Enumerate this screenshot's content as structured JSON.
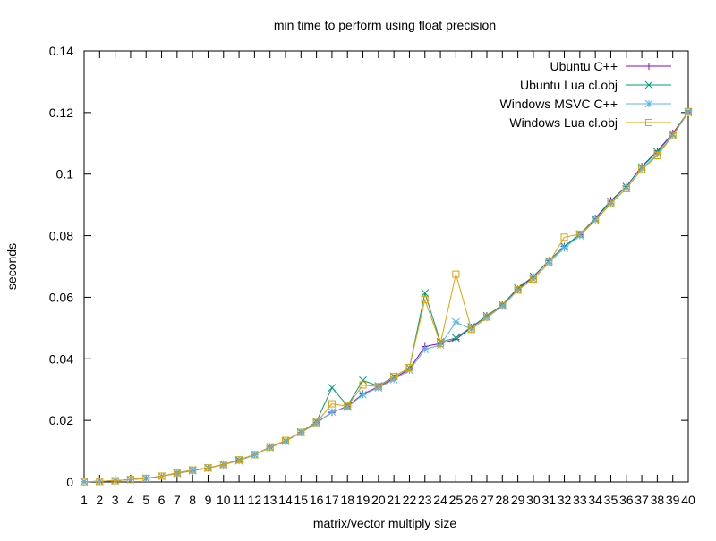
{
  "chart_data": {
    "type": "line",
    "title": "min time to perform using float precision",
    "xlabel": "matrix/vector multiply size",
    "ylabel": "seconds",
    "x": [
      1,
      2,
      3,
      4,
      5,
      6,
      7,
      8,
      9,
      10,
      11,
      12,
      13,
      14,
      15,
      16,
      17,
      18,
      19,
      20,
      21,
      22,
      23,
      24,
      25,
      26,
      27,
      28,
      29,
      30,
      31,
      32,
      33,
      34,
      35,
      36,
      37,
      38,
      39,
      40
    ],
    "xlim": [
      1,
      40
    ],
    "ylim": [
      0,
      0.14
    ],
    "yticks": [
      "0",
      "0.02",
      "0.04",
      "0.06",
      "0.08",
      "0.1",
      "0.12",
      "0.14"
    ],
    "ytick_values": [
      0,
      0.02,
      0.04,
      0.06,
      0.08,
      0.1,
      0.12,
      0.14
    ],
    "legend_position": "top-right",
    "grid": false,
    "series": [
      {
        "name": "Ubuntu C++",
        "color": "#9400d3",
        "marker": "plus",
        "values": [
          0.0001,
          0.0002,
          0.0004,
          0.0008,
          0.0012,
          0.0019,
          0.0028,
          0.0037,
          0.0045,
          0.0056,
          0.0072,
          0.0089,
          0.0114,
          0.0133,
          0.0161,
          0.0193,
          0.0226,
          0.0246,
          0.0286,
          0.0309,
          0.0337,
          0.0367,
          0.044,
          0.045,
          0.0463,
          0.0502,
          0.054,
          0.0575,
          0.0626,
          0.0666,
          0.0719,
          0.0765,
          0.0803,
          0.0857,
          0.0914,
          0.096,
          0.1025,
          0.1075,
          0.1133,
          0.1202
        ]
      },
      {
        "name": "Ubuntu Lua cl.obj",
        "color": "#009e73",
        "marker": "cross",
        "values": [
          0.0001,
          0.0002,
          0.0004,
          0.0008,
          0.0012,
          0.0019,
          0.003,
          0.0039,
          0.0046,
          0.0057,
          0.0072,
          0.0089,
          0.0114,
          0.0134,
          0.0162,
          0.0196,
          0.0306,
          0.0248,
          0.033,
          0.0312,
          0.0343,
          0.0371,
          0.0614,
          0.0455,
          0.0468,
          0.0504,
          0.054,
          0.0576,
          0.063,
          0.0668,
          0.0718,
          0.0765,
          0.0805,
          0.0855,
          0.0911,
          0.096,
          0.1023,
          0.1072,
          0.113,
          0.1203
        ]
      },
      {
        "name": "Windows MSVC C++",
        "color": "#56b4e9",
        "marker": "star",
        "values": [
          0.0001,
          0.0002,
          0.0004,
          0.0008,
          0.0012,
          0.0019,
          0.0028,
          0.0037,
          0.0045,
          0.0056,
          0.0069,
          0.0088,
          0.0112,
          0.0132,
          0.016,
          0.019,
          0.0228,
          0.0243,
          0.0284,
          0.0306,
          0.0333,
          0.0363,
          0.0431,
          0.0445,
          0.052,
          0.0496,
          0.0534,
          0.0571,
          0.0623,
          0.0659,
          0.0712,
          0.076,
          0.08,
          0.085,
          0.0904,
          0.0953,
          0.1017,
          0.1065,
          0.1125,
          0.12
        ]
      },
      {
        "name": "Windows Lua cl.obj",
        "color": "#e69f00",
        "marker": "square",
        "values": [
          0.0001,
          0.0002,
          0.0004,
          0.0008,
          0.0012,
          0.0019,
          0.003,
          0.0039,
          0.0046,
          0.0057,
          0.0072,
          0.0089,
          0.0114,
          0.0135,
          0.0161,
          0.0193,
          0.0254,
          0.0246,
          0.0315,
          0.031,
          0.0342,
          0.0372,
          0.0592,
          0.045,
          0.0675,
          0.0496,
          0.0536,
          0.0573,
          0.0624,
          0.0659,
          0.0712,
          0.0795,
          0.0805,
          0.0848,
          0.0905,
          0.0953,
          0.1015,
          0.106,
          0.1125,
          0.1203
        ]
      }
    ]
  }
}
